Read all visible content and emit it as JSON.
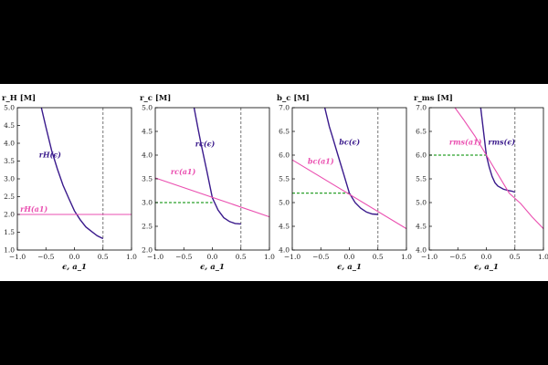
{
  "colors": {
    "background": "#000000",
    "figure_bg": "#ffffff",
    "dark_curve": "#3a1a8c",
    "pink": "#ea4fb0",
    "green": "#2aa02a",
    "axis": "#000000",
    "vline": "#777777"
  },
  "chart_data": [
    {
      "type": "line",
      "ylabel": "r_H [M]",
      "xlabel": "ϵ, a_1",
      "xlim": [
        -1.0,
        1.0
      ],
      "ylim": [
        1.0,
        5.0
      ],
      "xticks": [
        -1.0,
        -0.5,
        0.0,
        0.5,
        1.0
      ],
      "yticks": [
        1.0,
        1.5,
        2.0,
        2.5,
        3.0,
        3.5,
        4.0,
        4.5,
        5.0
      ],
      "xtick_labels": [
        "−1.0",
        "−0.5",
        "0.0",
        "0.5",
        "1.0"
      ],
      "ytick_labels": [
        "1.0",
        "1.5",
        "2.0",
        "2.5",
        "3.0",
        "3.5",
        "4.0",
        "4.5",
        "5.0"
      ],
      "vline": 0.5,
      "series": [
        {
          "name": "r_H(ϵ)",
          "label": "rH(ϵ)",
          "style": "dark",
          "x": [
            -0.58,
            -0.5,
            -0.4,
            -0.3,
            -0.2,
            -0.1,
            0.0,
            0.1,
            0.2,
            0.3,
            0.4,
            0.5
          ],
          "y": [
            5.0,
            4.45,
            3.8,
            3.28,
            2.82,
            2.45,
            2.1,
            1.85,
            1.65,
            1.52,
            1.4,
            1.32
          ]
        },
        {
          "name": "r_H(a_1)",
          "label": "rH(a1)",
          "style": "pink",
          "x": [
            -1.0,
            1.0
          ],
          "y": [
            2.0,
            2.0
          ]
        }
      ],
      "labels": [
        {
          "text": "rH(ϵ)",
          "x": -0.62,
          "y": 3.6,
          "style": "dark"
        },
        {
          "text": "rH(a1)",
          "x": -0.95,
          "y": 2.08,
          "style": "pink"
        }
      ]
    },
    {
      "type": "line",
      "ylabel": "r_c [M]",
      "xlabel": "ϵ, a_1",
      "xlim": [
        -1.0,
        1.0
      ],
      "ylim": [
        2.0,
        5.0
      ],
      "xticks": [
        -1.0,
        -0.5,
        0.0,
        0.5,
        1.0
      ],
      "yticks": [
        2.0,
        2.5,
        3.0,
        3.5,
        4.0,
        4.5,
        5.0
      ],
      "xtick_labels": [
        "−1.0",
        "−0.5",
        "0.0",
        "0.5",
        "1.0"
      ],
      "ytick_labels": [
        "2.0",
        "2.5",
        "3.0",
        "3.5",
        "4.0",
        "4.5",
        "5.0"
      ],
      "vline": 0.5,
      "hline": {
        "y": 3.0,
        "x_from": -1.0,
        "x_to": 0.0
      },
      "series": [
        {
          "name": "r_c(ϵ)",
          "label": "rc(ϵ)",
          "style": "dark",
          "x": [
            -0.32,
            -0.25,
            -0.2,
            -0.1,
            0.0,
            0.1,
            0.2,
            0.3,
            0.4,
            0.5
          ],
          "y": [
            5.0,
            4.55,
            4.25,
            3.68,
            3.1,
            2.84,
            2.68,
            2.6,
            2.56,
            2.55
          ]
        },
        {
          "name": "r_c(a_1)",
          "label": "rc(a1)",
          "style": "pink",
          "x": [
            -1.0,
            1.0
          ],
          "y": [
            3.52,
            2.7
          ]
        }
      ],
      "labels": [
        {
          "text": "rc(ϵ)",
          "x": -0.3,
          "y": 4.18,
          "style": "dark"
        },
        {
          "text": "rc(a1)",
          "x": -0.73,
          "y": 3.6,
          "style": "pink"
        }
      ]
    },
    {
      "type": "line",
      "ylabel": "b_c [M]",
      "xlabel": "ϵ, a_1",
      "xlim": [
        -1.0,
        1.0
      ],
      "ylim": [
        4.0,
        7.0
      ],
      "xticks": [
        -1.0,
        -0.5,
        0.0,
        0.5,
        1.0
      ],
      "yticks": [
        4.0,
        4.5,
        5.0,
        5.5,
        6.0,
        6.5,
        7.0
      ],
      "xtick_labels": [
        "−1.0",
        "−0.5",
        "0.0",
        "0.5",
        "1.0"
      ],
      "ytick_labels": [
        "4.0",
        "4.5",
        "5.0",
        "5.5",
        "6.0",
        "6.5",
        "7.0"
      ],
      "vline": 0.5,
      "hline": {
        "y": 5.2,
        "x_from": -1.0,
        "x_to": 0.0
      },
      "series": [
        {
          "name": "b_c(ϵ)",
          "label": "bc(ϵ)",
          "style": "dark",
          "x": [
            -0.43,
            -0.35,
            -0.3,
            -0.2,
            -0.1,
            0.0,
            0.1,
            0.2,
            0.3,
            0.4,
            0.5
          ],
          "y": [
            7.0,
            6.6,
            6.4,
            6.0,
            5.6,
            5.2,
            5.0,
            4.88,
            4.8,
            4.76,
            4.75
          ]
        },
        {
          "name": "b_c(a_1)",
          "label": "bc(a1)",
          "style": "pink",
          "x": [
            -1.0,
            1.0
          ],
          "y": [
            5.9,
            4.45
          ]
        }
      ],
      "labels": [
        {
          "text": "bc(ϵ)",
          "x": -0.18,
          "y": 6.22,
          "style": "dark"
        },
        {
          "text": "bc(a1)",
          "x": -0.73,
          "y": 5.82,
          "style": "pink"
        }
      ]
    },
    {
      "type": "line",
      "ylabel": "r_ms [M]",
      "xlabel": "ϵ, a_1",
      "xlim": [
        -1.0,
        1.0
      ],
      "ylim": [
        4.0,
        7.0
      ],
      "xticks": [
        -1.0,
        -0.5,
        0.0,
        0.5,
        1.0
      ],
      "yticks": [
        4.0,
        4.5,
        5.0,
        5.5,
        6.0,
        6.5,
        7.0
      ],
      "xtick_labels": [
        "−1.0",
        "−0.5",
        "0.0",
        "0.5",
        "1.0"
      ],
      "ytick_labels": [
        "4.0",
        "4.5",
        "5.0",
        "5.5",
        "6.0",
        "6.5",
        "7.0"
      ],
      "vline": 0.5,
      "hline": {
        "y": 6.0,
        "x_from": -1.0,
        "x_to": 0.0
      },
      "series": [
        {
          "name": "r_ms(ϵ)",
          "label": "rms(ϵ)",
          "style": "dark",
          "x": [
            -0.1,
            -0.05,
            0.0,
            0.05,
            0.1,
            0.15,
            0.2,
            0.3,
            0.4,
            0.45,
            0.5
          ],
          "y": [
            7.0,
            6.5,
            6.0,
            5.75,
            5.55,
            5.42,
            5.35,
            5.28,
            5.25,
            5.24,
            5.22
          ]
        },
        {
          "name": "r_ms(a_1)",
          "label": "rms(a1)",
          "style": "pink",
          "x": [
            -0.55,
            -0.4,
            -0.2,
            0.0,
            0.2,
            0.4,
            0.6,
            0.8,
            1.0
          ],
          "y": [
            7.0,
            6.75,
            6.4,
            6.0,
            5.6,
            5.2,
            4.98,
            4.7,
            4.45
          ]
        }
      ],
      "labels": [
        {
          "text": "rms(ϵ)",
          "x": 0.03,
          "y": 6.22,
          "style": "dark"
        },
        {
          "text": "rms(a1)",
          "x": -0.65,
          "y": 6.22,
          "style": "pink"
        }
      ]
    }
  ]
}
